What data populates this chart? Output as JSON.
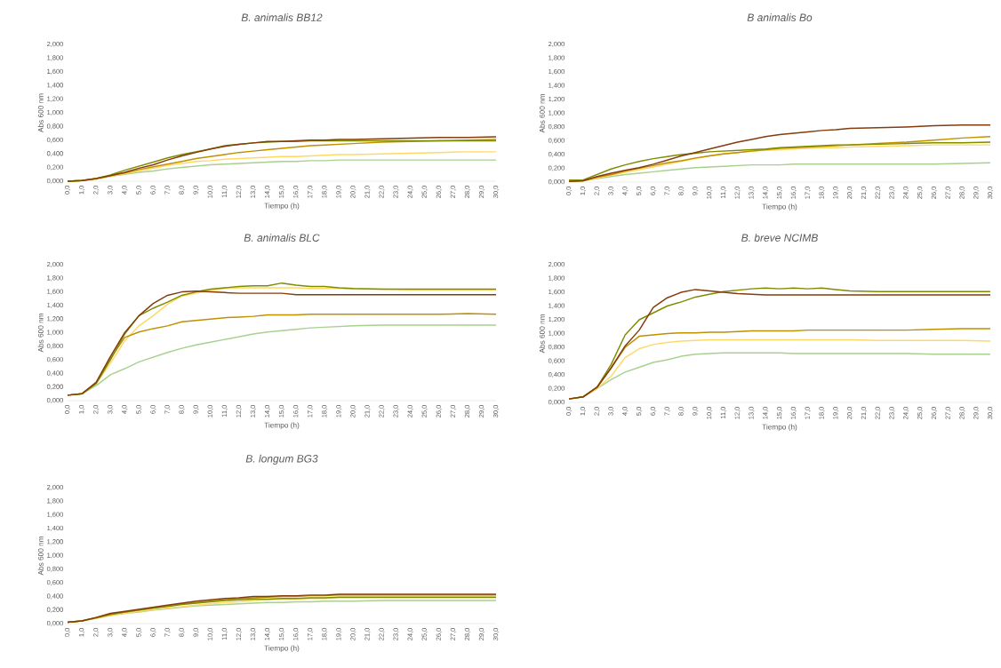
{
  "chart_data": [
    {
      "type": "line",
      "title": "B. animalis BB12",
      "xlabel": "Tiempo (h)",
      "ylabel": "Abs 600 nm",
      "x": [
        0,
        1,
        2,
        3,
        4,
        5,
        6,
        7,
        8,
        9,
        10,
        11,
        12,
        13,
        14,
        15,
        16,
        17,
        18,
        19,
        20,
        22,
        24,
        26,
        28,
        30
      ],
      "xlim": [
        0,
        30
      ],
      "ylim": [
        0,
        2
      ],
      "xticks": [
        {
          "value": 0,
          "label": "0,0"
        },
        {
          "value": 1,
          "label": "1,0"
        },
        {
          "value": 2,
          "label": "2,0"
        },
        {
          "value": 3,
          "label": "3,0"
        },
        {
          "value": 4,
          "label": "4,0"
        },
        {
          "value": 5,
          "label": "5,0"
        },
        {
          "value": 6,
          "label": "6,0"
        },
        {
          "value": 7,
          "label": "7,0"
        },
        {
          "value": 8,
          "label": "8,0"
        },
        {
          "value": 9,
          "label": "9,0"
        },
        {
          "value": 10,
          "label": "10,0"
        },
        {
          "value": 11,
          "label": "11,0"
        },
        {
          "value": 12,
          "label": "12,0"
        },
        {
          "value": 13,
          "label": "13,0"
        },
        {
          "value": 14,
          "label": "14,0"
        },
        {
          "value": 15,
          "label": "15,0"
        },
        {
          "value": 16,
          "label": "16,0"
        },
        {
          "value": 17,
          "label": "17,0"
        },
        {
          "value": 18,
          "label": "18,0"
        },
        {
          "value": 19,
          "label": "19,0"
        },
        {
          "value": 20,
          "label": "20,0"
        },
        {
          "value": 21,
          "label": "21,0"
        },
        {
          "value": 22,
          "label": "22,0"
        },
        {
          "value": 23,
          "label": "23,0"
        },
        {
          "value": 24,
          "label": "24,0"
        },
        {
          "value": 25,
          "label": "25,0"
        },
        {
          "value": 26,
          "label": "26,0"
        },
        {
          "value": 27,
          "label": "27,0"
        },
        {
          "value": 28,
          "label": "28,0"
        },
        {
          "value": 29,
          "label": "29,0"
        },
        {
          "value": 30,
          "label": "30,0"
        }
      ],
      "yticks": [
        {
          "value": 0,
          "label": "0,000"
        },
        {
          "value": 0.2,
          "label": "0,200"
        },
        {
          "value": 0.4,
          "label": "0,400"
        },
        {
          "value": 0.6,
          "label": "0,600"
        },
        {
          "value": 0.8,
          "label": "0,800"
        },
        {
          "value": 1,
          "label": "1,000"
        },
        {
          "value": 1.2,
          "label": "1,200"
        },
        {
          "value": 1.4,
          "label": "1,400"
        },
        {
          "value": 1.6,
          "label": "1,600"
        },
        {
          "value": 1.8,
          "label": "1,800"
        },
        {
          "value": 2,
          "label": "2,000"
        }
      ],
      "series": [
        {
          "color": "#a9d08e",
          "values": [
            0,
            0.01,
            0.03,
            0.07,
            0.1,
            0.13,
            0.15,
            0.18,
            0.2,
            0.22,
            0.24,
            0.25,
            0.26,
            0.27,
            0.28,
            0.29,
            0.29,
            0.3,
            0.3,
            0.31,
            0.31,
            0.31,
            0.31,
            0.31,
            0.31,
            0.31
          ]
        },
        {
          "color": "#ffd966",
          "values": [
            0,
            0.01,
            0.03,
            0.07,
            0.11,
            0.15,
            0.19,
            0.23,
            0.26,
            0.29,
            0.3,
            0.32,
            0.33,
            0.34,
            0.35,
            0.36,
            0.36,
            0.37,
            0.38,
            0.39,
            0.39,
            0.4,
            0.41,
            0.42,
            0.43,
            0.43
          ]
        },
        {
          "color": "#bf9000",
          "values": [
            0,
            0.01,
            0.04,
            0.08,
            0.12,
            0.17,
            0.21,
            0.25,
            0.29,
            0.33,
            0.36,
            0.39,
            0.42,
            0.44,
            0.46,
            0.48,
            0.5,
            0.52,
            0.53,
            0.54,
            0.55,
            0.57,
            0.58,
            0.59,
            0.6,
            0.61
          ]
        },
        {
          "color": "#7f8c00",
          "values": [
            0,
            0.01,
            0.04,
            0.09,
            0.16,
            0.22,
            0.28,
            0.34,
            0.39,
            0.43,
            0.47,
            0.52,
            0.54,
            0.56,
            0.57,
            0.58,
            0.58,
            0.59,
            0.59,
            0.59,
            0.59,
            0.59,
            0.59,
            0.59,
            0.59,
            0.59
          ]
        },
        {
          "color": "#843c0c",
          "values": [
            0,
            0.01,
            0.04,
            0.08,
            0.13,
            0.19,
            0.24,
            0.31,
            0.37,
            0.42,
            0.47,
            0.51,
            0.54,
            0.56,
            0.58,
            0.58,
            0.59,
            0.6,
            0.6,
            0.61,
            0.61,
            0.62,
            0.63,
            0.64,
            0.64,
            0.65
          ]
        }
      ]
    },
    {
      "type": "line",
      "title": "B animalis Bo",
      "xlabel": "Tiempo (h)",
      "ylabel": "Abs 600 nm",
      "x": [
        0,
        1,
        2,
        3,
        4,
        5,
        6,
        7,
        8,
        9,
        10,
        11,
        12,
        13,
        14,
        15,
        16,
        17,
        18,
        19,
        20,
        22,
        24,
        26,
        28,
        30
      ],
      "xlim": [
        0,
        30
      ],
      "ylim": [
        0,
        2
      ],
      "xticks": [
        {
          "value": 0,
          "label": "0,0"
        },
        {
          "value": 1,
          "label": "1,0"
        },
        {
          "value": 2,
          "label": "2,0"
        },
        {
          "value": 3,
          "label": "3,0"
        },
        {
          "value": 4,
          "label": "4,0"
        },
        {
          "value": 5,
          "label": "5,0"
        },
        {
          "value": 6,
          "label": "6,0"
        },
        {
          "value": 7,
          "label": "7,0"
        },
        {
          "value": 8,
          "label": "8,0"
        },
        {
          "value": 9,
          "label": "9,0"
        },
        {
          "value": 10,
          "label": "10,0"
        },
        {
          "value": 11,
          "label": "11,0"
        },
        {
          "value": 12,
          "label": "12,0"
        },
        {
          "value": 13,
          "label": "13,0"
        },
        {
          "value": 14,
          "label": "14,0"
        },
        {
          "value": 15,
          "label": "15,0"
        },
        {
          "value": 16,
          "label": "16,0"
        },
        {
          "value": 17,
          "label": "17,0"
        },
        {
          "value": 18,
          "label": "18,0"
        },
        {
          "value": 19,
          "label": "19,0"
        },
        {
          "value": 20,
          "label": "20,0"
        },
        {
          "value": 21,
          "label": "21,0"
        },
        {
          "value": 22,
          "label": "22,0"
        },
        {
          "value": 23,
          "label": "23,0"
        },
        {
          "value": 24,
          "label": "24,0"
        },
        {
          "value": 25,
          "label": "25,0"
        },
        {
          "value": 26,
          "label": "26,0"
        },
        {
          "value": 27,
          "label": "27,0"
        },
        {
          "value": 28,
          "label": "28,0"
        },
        {
          "value": 29,
          "label": "29,0"
        },
        {
          "value": 30,
          "label": "30,0"
        }
      ],
      "yticks": [
        {
          "value": 0,
          "label": "0,000"
        },
        {
          "value": 0.2,
          "label": "0,200"
        },
        {
          "value": 0.4,
          "label": "0,400"
        },
        {
          "value": 0.6,
          "label": "0,600"
        },
        {
          "value": 0.8,
          "label": "0,800"
        },
        {
          "value": 1,
          "label": "1,000"
        },
        {
          "value": 1.2,
          "label": "1,200"
        },
        {
          "value": 1.4,
          "label": "1,400"
        },
        {
          "value": 1.6,
          "label": "1,600"
        },
        {
          "value": 1.8,
          "label": "1,800"
        },
        {
          "value": 2,
          "label": "2,000"
        }
      ],
      "series": [
        {
          "color": "#a9d08e",
          "values": [
            0.01,
            0.02,
            0.05,
            0.08,
            0.11,
            0.13,
            0.15,
            0.17,
            0.19,
            0.21,
            0.22,
            0.23,
            0.24,
            0.25,
            0.25,
            0.25,
            0.26,
            0.26,
            0.26,
            0.26,
            0.26,
            0.26,
            0.26,
            0.26,
            0.27,
            0.28
          ]
        },
        {
          "color": "#ffd966",
          "values": [
            0.01,
            0.02,
            0.06,
            0.1,
            0.14,
            0.18,
            0.22,
            0.26,
            0.3,
            0.34,
            0.38,
            0.41,
            0.43,
            0.45,
            0.46,
            0.47,
            0.48,
            0.49,
            0.5,
            0.5,
            0.51,
            0.52,
            0.53,
            0.54,
            0.54,
            0.54
          ]
        },
        {
          "color": "#bf9000",
          "values": [
            0.01,
            0.02,
            0.07,
            0.11,
            0.16,
            0.2,
            0.24,
            0.28,
            0.31,
            0.35,
            0.38,
            0.41,
            0.43,
            0.45,
            0.47,
            0.49,
            0.5,
            0.51,
            0.52,
            0.53,
            0.54,
            0.56,
            0.58,
            0.61,
            0.64,
            0.66
          ]
        },
        {
          "color": "#7f8c00",
          "values": [
            0.03,
            0.03,
            0.11,
            0.19,
            0.25,
            0.3,
            0.34,
            0.37,
            0.4,
            0.42,
            0.44,
            0.45,
            0.46,
            0.47,
            0.48,
            0.5,
            0.51,
            0.52,
            0.53,
            0.54,
            0.54,
            0.55,
            0.56,
            0.57,
            0.57,
            0.58
          ]
        },
        {
          "color": "#843c0c",
          "values": [
            0.01,
            0.02,
            0.08,
            0.13,
            0.17,
            0.21,
            0.26,
            0.32,
            0.38,
            0.43,
            0.48,
            0.53,
            0.58,
            0.62,
            0.66,
            0.69,
            0.71,
            0.73,
            0.75,
            0.76,
            0.78,
            0.79,
            0.8,
            0.82,
            0.83,
            0.83
          ]
        }
      ]
    },
    {
      "type": "line",
      "title": "B. animalis BLC",
      "xlabel": "Tiempo (h)",
      "ylabel": "Abs 600 nm",
      "x": [
        0,
        1,
        2,
        3,
        4,
        5,
        6,
        7,
        8,
        9,
        10,
        11,
        12,
        13,
        14,
        15,
        16,
        17,
        18,
        19,
        20,
        22,
        24,
        26,
        28,
        30
      ],
      "xlim": [
        0,
        30
      ],
      "ylim": [
        0,
        2
      ],
      "xticks": [
        {
          "value": 0,
          "label": "0,0"
        },
        {
          "value": 1,
          "label": "1,0"
        },
        {
          "value": 2,
          "label": "2,0"
        },
        {
          "value": 3,
          "label": "3,0"
        },
        {
          "value": 4,
          "label": "4,0"
        },
        {
          "value": 5,
          "label": "5,0"
        },
        {
          "value": 6,
          "label": "6,0"
        },
        {
          "value": 7,
          "label": "7,0"
        },
        {
          "value": 8,
          "label": "8,0"
        },
        {
          "value": 9,
          "label": "9,0"
        },
        {
          "value": 10,
          "label": "10,0"
        },
        {
          "value": 11,
          "label": "11,0"
        },
        {
          "value": 12,
          "label": "12,0"
        },
        {
          "value": 13,
          "label": "13,0"
        },
        {
          "value": 14,
          "label": "14,0"
        },
        {
          "value": 15,
          "label": "15,0"
        },
        {
          "value": 16,
          "label": "16,0"
        },
        {
          "value": 17,
          "label": "17,0"
        },
        {
          "value": 18,
          "label": "18,0"
        },
        {
          "value": 19,
          "label": "19,0"
        },
        {
          "value": 20,
          "label": "20,0"
        },
        {
          "value": 21,
          "label": "21,0"
        },
        {
          "value": 22,
          "label": "22,0"
        },
        {
          "value": 23,
          "label": "23,0"
        },
        {
          "value": 24,
          "label": "24,0"
        },
        {
          "value": 25,
          "label": "25,0"
        },
        {
          "value": 26,
          "label": "26,0"
        },
        {
          "value": 27,
          "label": "27,0"
        },
        {
          "value": 28,
          "label": "28,0"
        },
        {
          "value": 29,
          "label": "29,0"
        },
        {
          "value": 30,
          "label": "30,0"
        }
      ],
      "yticks": [
        {
          "value": 0,
          "label": "0,000"
        },
        {
          "value": 0.2,
          "label": "0,200"
        },
        {
          "value": 0.4,
          "label": "0,400"
        },
        {
          "value": 0.6,
          "label": "0,600"
        },
        {
          "value": 0.8,
          "label": "0,800"
        },
        {
          "value": 1,
          "label": "1,000"
        },
        {
          "value": 1.2,
          "label": "1,200"
        },
        {
          "value": 1.4,
          "label": "1,400"
        },
        {
          "value": 1.6,
          "label": "1,600"
        },
        {
          "value": 1.8,
          "label": "1,800"
        },
        {
          "value": 2,
          "label": "2,000"
        }
      ],
      "series": [
        {
          "color": "#a9d08e",
          "values": [
            0.08,
            0.1,
            0.22,
            0.38,
            0.47,
            0.57,
            0.64,
            0.71,
            0.77,
            0.82,
            0.86,
            0.9,
            0.94,
            0.98,
            1.01,
            1.03,
            1.05,
            1.07,
            1.08,
            1.09,
            1.1,
            1.11,
            1.11,
            1.11,
            1.11,
            1.11
          ]
        },
        {
          "color": "#ffd966",
          "values": [
            0.08,
            0.1,
            0.25,
            0.55,
            0.88,
            1.1,
            1.25,
            1.42,
            1.54,
            1.58,
            1.62,
            1.65,
            1.66,
            1.66,
            1.66,
            1.66,
            1.66,
            1.65,
            1.65,
            1.65,
            1.64,
            1.64,
            1.63,
            1.63,
            1.63,
            1.63
          ]
        },
        {
          "color": "#bf9000",
          "values": [
            0.08,
            0.1,
            0.26,
            0.62,
            0.93,
            1.01,
            1.06,
            1.1,
            1.16,
            1.18,
            1.2,
            1.22,
            1.23,
            1.24,
            1.26,
            1.26,
            1.26,
            1.27,
            1.27,
            1.27,
            1.27,
            1.27,
            1.27,
            1.27,
            1.28,
            1.27
          ]
        },
        {
          "color": "#7f8c00",
          "values": [
            0.08,
            0.1,
            0.25,
            0.6,
            0.98,
            1.25,
            1.36,
            1.45,
            1.55,
            1.6,
            1.64,
            1.66,
            1.68,
            1.69,
            1.69,
            1.73,
            1.7,
            1.68,
            1.68,
            1.66,
            1.65,
            1.64,
            1.64,
            1.64,
            1.64,
            1.64
          ]
        },
        {
          "color": "#843c0c",
          "values": [
            0.08,
            0.1,
            0.27,
            0.65,
            1.0,
            1.25,
            1.43,
            1.55,
            1.6,
            1.61,
            1.6,
            1.59,
            1.58,
            1.58,
            1.58,
            1.58,
            1.56,
            1.56,
            1.56,
            1.56,
            1.56,
            1.56,
            1.56,
            1.56,
            1.56,
            1.56
          ]
        }
      ]
    },
    {
      "type": "line",
      "title": "B. breve NCIMB",
      "xlabel": "Tiempo (h)",
      "ylabel": "Abs 600 nm",
      "x": [
        0,
        1,
        2,
        3,
        4,
        5,
        6,
        7,
        8,
        9,
        10,
        11,
        12,
        13,
        14,
        15,
        16,
        17,
        18,
        19,
        20,
        22,
        24,
        26,
        28,
        30
      ],
      "xlim": [
        0,
        30
      ],
      "ylim": [
        0,
        2
      ],
      "xticks": [
        {
          "value": 0,
          "label": "0,0"
        },
        {
          "value": 1,
          "label": "1,0"
        },
        {
          "value": 2,
          "label": "2,0"
        },
        {
          "value": 3,
          "label": "3,0"
        },
        {
          "value": 4,
          "label": "4,0"
        },
        {
          "value": 5,
          "label": "5,0"
        },
        {
          "value": 6,
          "label": "6,0"
        },
        {
          "value": 7,
          "label": "7,0"
        },
        {
          "value": 8,
          "label": "8,0"
        },
        {
          "value": 9,
          "label": "9,0"
        },
        {
          "value": 10,
          "label": "10,0"
        },
        {
          "value": 11,
          "label": "11,0"
        },
        {
          "value": 12,
          "label": "12,0"
        },
        {
          "value": 13,
          "label": "13,0"
        },
        {
          "value": 14,
          "label": "14,0"
        },
        {
          "value": 15,
          "label": "15,0"
        },
        {
          "value": 16,
          "label": "16,0"
        },
        {
          "value": 17,
          "label": "17,0"
        },
        {
          "value": 18,
          "label": "18,0"
        },
        {
          "value": 19,
          "label": "19,0"
        },
        {
          "value": 20,
          "label": "20,0"
        },
        {
          "value": 21,
          "label": "21,0"
        },
        {
          "value": 22,
          "label": "22,0"
        },
        {
          "value": 23,
          "label": "23,0"
        },
        {
          "value": 24,
          "label": "24,0"
        },
        {
          "value": 25,
          "label": "25,0"
        },
        {
          "value": 26,
          "label": "26,0"
        },
        {
          "value": 27,
          "label": "27,0"
        },
        {
          "value": 28,
          "label": "28,0"
        },
        {
          "value": 29,
          "label": "29,0"
        },
        {
          "value": 30,
          "label": "30,0"
        }
      ],
      "yticks": [
        {
          "value": 0,
          "label": "0,000"
        },
        {
          "value": 0.2,
          "label": "0,200"
        },
        {
          "value": 0.4,
          "label": "0,400"
        },
        {
          "value": 0.6,
          "label": "0,600"
        },
        {
          "value": 0.8,
          "label": "0,800"
        },
        {
          "value": 1,
          "label": "1,000"
        },
        {
          "value": 1.2,
          "label": "1,200"
        },
        {
          "value": 1.4,
          "label": "1,400"
        },
        {
          "value": 1.6,
          "label": "1,600"
        },
        {
          "value": 1.8,
          "label": "1,800"
        },
        {
          "value": 2,
          "label": "2,000"
        }
      ],
      "series": [
        {
          "color": "#a9d08e",
          "values": [
            0.05,
            0.08,
            0.2,
            0.33,
            0.44,
            0.51,
            0.58,
            0.62,
            0.67,
            0.7,
            0.71,
            0.72,
            0.72,
            0.72,
            0.72,
            0.72,
            0.71,
            0.71,
            0.71,
            0.71,
            0.71,
            0.71,
            0.71,
            0.7,
            0.7,
            0.7
          ]
        },
        {
          "color": "#ffd966",
          "values": [
            0.05,
            0.08,
            0.2,
            0.38,
            0.65,
            0.78,
            0.84,
            0.87,
            0.89,
            0.9,
            0.91,
            0.91,
            0.91,
            0.91,
            0.91,
            0.91,
            0.91,
            0.91,
            0.91,
            0.91,
            0.91,
            0.9,
            0.9,
            0.9,
            0.9,
            0.89
          ]
        },
        {
          "color": "#bf9000",
          "values": [
            0.05,
            0.08,
            0.22,
            0.5,
            0.8,
            0.96,
            0.98,
            1.0,
            1.01,
            1.01,
            1.02,
            1.02,
            1.03,
            1.04,
            1.04,
            1.04,
            1.04,
            1.05,
            1.05,
            1.05,
            1.05,
            1.05,
            1.05,
            1.06,
            1.07,
            1.07
          ]
        },
        {
          "color": "#7f8c00",
          "values": [
            0.05,
            0.08,
            0.22,
            0.55,
            0.98,
            1.2,
            1.3,
            1.4,
            1.46,
            1.53,
            1.57,
            1.61,
            1.63,
            1.65,
            1.66,
            1.65,
            1.66,
            1.65,
            1.66,
            1.64,
            1.62,
            1.61,
            1.61,
            1.61,
            1.61,
            1.61
          ]
        },
        {
          "color": "#843c0c",
          "values": [
            0.05,
            0.08,
            0.22,
            0.5,
            0.82,
            1.05,
            1.38,
            1.52,
            1.6,
            1.64,
            1.62,
            1.6,
            1.58,
            1.57,
            1.56,
            1.56,
            1.56,
            1.56,
            1.56,
            1.56,
            1.56,
            1.56,
            1.56,
            1.56,
            1.56,
            1.56
          ]
        }
      ]
    },
    {
      "type": "line",
      "title": "B. longum BG3",
      "xlabel": "Tiempo (h)",
      "ylabel": "Abs 600 nm",
      "x": [
        0,
        1,
        2,
        3,
        4,
        5,
        6,
        7,
        8,
        9,
        10,
        11,
        12,
        13,
        14,
        15,
        16,
        17,
        18,
        19,
        20,
        22,
        24,
        26,
        28,
        30
      ],
      "xlim": [
        0,
        30
      ],
      "ylim": [
        0,
        2
      ],
      "xticks": [
        {
          "value": 0,
          "label": "0,0"
        },
        {
          "value": 1,
          "label": "1,0"
        },
        {
          "value": 2,
          "label": "2,0"
        },
        {
          "value": 3,
          "label": "3,0"
        },
        {
          "value": 4,
          "label": "4,0"
        },
        {
          "value": 5,
          "label": "5,0"
        },
        {
          "value": 6,
          "label": "6,0"
        },
        {
          "value": 7,
          "label": "7,0"
        },
        {
          "value": 8,
          "label": "8,0"
        },
        {
          "value": 9,
          "label": "9,0"
        },
        {
          "value": 10,
          "label": "10,0"
        },
        {
          "value": 11,
          "label": "11,0"
        },
        {
          "value": 12,
          "label": "12,0"
        },
        {
          "value": 13,
          "label": "13,0"
        },
        {
          "value": 14,
          "label": "14,0"
        },
        {
          "value": 15,
          "label": "15,0"
        },
        {
          "value": 16,
          "label": "16,0"
        },
        {
          "value": 17,
          "label": "17,0"
        },
        {
          "value": 18,
          "label": "18,0"
        },
        {
          "value": 19,
          "label": "19,0"
        },
        {
          "value": 20,
          "label": "20,0"
        },
        {
          "value": 21,
          "label": "21,0"
        },
        {
          "value": 22,
          "label": "22,0"
        },
        {
          "value": 23,
          "label": "23,0"
        },
        {
          "value": 24,
          "label": "24,0"
        },
        {
          "value": 25,
          "label": "25,0"
        },
        {
          "value": 26,
          "label": "26,0"
        },
        {
          "value": 27,
          "label": "27,0"
        },
        {
          "value": 28,
          "label": "28,0"
        },
        {
          "value": 29,
          "label": "29,0"
        },
        {
          "value": 30,
          "label": "30,0"
        }
      ],
      "yticks": [
        {
          "value": 0,
          "label": "0,000"
        },
        {
          "value": 0.2,
          "label": "0,200"
        },
        {
          "value": 0.4,
          "label": "0,400"
        },
        {
          "value": 0.6,
          "label": "0,600"
        },
        {
          "value": 0.8,
          "label": "0,800"
        },
        {
          "value": 1,
          "label": "1,000"
        },
        {
          "value": 1.2,
          "label": "1,200"
        },
        {
          "value": 1.4,
          "label": "1,400"
        },
        {
          "value": 1.6,
          "label": "1,600"
        },
        {
          "value": 1.8,
          "label": "1,800"
        },
        {
          "value": 2,
          "label": "2,000"
        }
      ],
      "series": [
        {
          "color": "#a9d08e",
          "values": [
            0.02,
            0.04,
            0.08,
            0.12,
            0.15,
            0.17,
            0.2,
            0.22,
            0.24,
            0.26,
            0.27,
            0.28,
            0.29,
            0.3,
            0.31,
            0.31,
            0.32,
            0.32,
            0.33,
            0.33,
            0.33,
            0.34,
            0.34,
            0.34,
            0.34,
            0.34
          ]
        },
        {
          "color": "#ffd966",
          "values": [
            0.02,
            0.04,
            0.08,
            0.12,
            0.15,
            0.18,
            0.21,
            0.23,
            0.25,
            0.27,
            0.29,
            0.31,
            0.32,
            0.34,
            0.35,
            0.36,
            0.36,
            0.37,
            0.37,
            0.38,
            0.38,
            0.38,
            0.38,
            0.38,
            0.38,
            0.38
          ]
        },
        {
          "color": "#bf9000",
          "values": [
            0.02,
            0.04,
            0.08,
            0.13,
            0.17,
            0.2,
            0.23,
            0.26,
            0.29,
            0.31,
            0.33,
            0.35,
            0.37,
            0.38,
            0.39,
            0.4,
            0.4,
            0.41,
            0.41,
            0.42,
            0.42,
            0.42,
            0.42,
            0.42,
            0.42,
            0.42
          ]
        },
        {
          "color": "#7f8c00",
          "values": [
            0.02,
            0.04,
            0.09,
            0.14,
            0.17,
            0.2,
            0.23,
            0.25,
            0.28,
            0.3,
            0.32,
            0.34,
            0.35,
            0.36,
            0.36,
            0.37,
            0.37,
            0.38,
            0.38,
            0.39,
            0.39,
            0.39,
            0.39,
            0.39,
            0.39,
            0.39
          ]
        },
        {
          "color": "#843c0c",
          "values": [
            0.02,
            0.04,
            0.09,
            0.15,
            0.18,
            0.21,
            0.24,
            0.27,
            0.3,
            0.33,
            0.35,
            0.37,
            0.38,
            0.4,
            0.4,
            0.41,
            0.41,
            0.42,
            0.42,
            0.43,
            0.43,
            0.43,
            0.43,
            0.43,
            0.43,
            0.43
          ]
        }
      ]
    }
  ]
}
